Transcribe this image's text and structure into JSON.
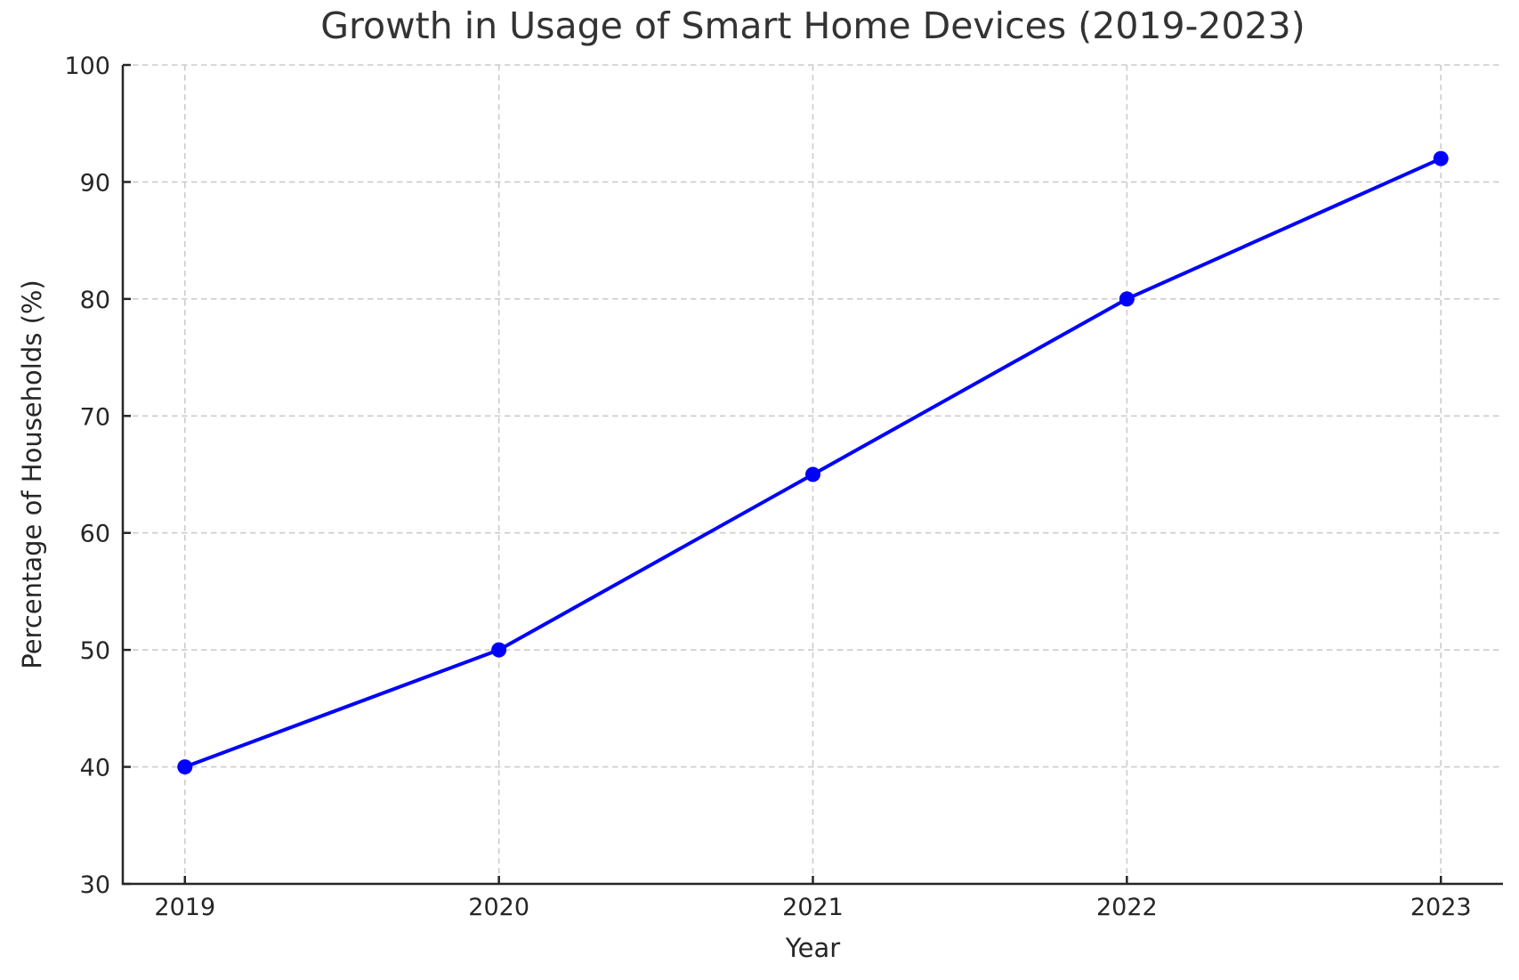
{
  "figure": {
    "background": "#ffffff"
  },
  "chart_data": {
    "type": "line",
    "title": "Growth in Usage of Smart Home Devices (2019-2023)",
    "xlabel": "Year",
    "ylabel": "Percentage of Households (%)",
    "x": [
      2019,
      2020,
      2021,
      2022,
      2023
    ],
    "x_tick_labels": [
      "2019",
      "2020",
      "2021",
      "2022",
      "2023"
    ],
    "values": [
      40,
      50,
      65,
      80,
      92
    ],
    "ylim": [
      30,
      100
    ],
    "yticks": [
      30,
      40,
      50,
      60,
      70,
      80,
      90,
      100
    ],
    "grid": {
      "visible": true,
      "style": "dashed",
      "color": "#cccccc"
    },
    "style": {
      "line_color": "#0000ff",
      "line_width": 4,
      "marker": "circle",
      "marker_radius": 8.5,
      "axis_color": "#262626",
      "tick_label_color": "#262626",
      "title_color": "#333333",
      "spines": [
        "left",
        "bottom"
      ],
      "tick_direction": "in",
      "legend": "none"
    }
  }
}
